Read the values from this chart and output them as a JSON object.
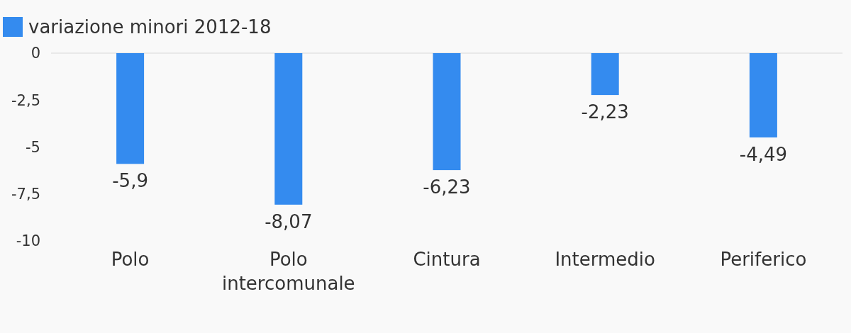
{
  "chart_data": {
    "type": "bar",
    "categories": [
      "Polo",
      "Polo intercomunale",
      "Cintura",
      "Intermedio",
      "Periferico"
    ],
    "series": [
      {
        "name": "variazione minori 2012-18",
        "color": "#348bef",
        "values": [
          -5.9,
          -8.07,
          -6.23,
          -2.23,
          -4.49
        ],
        "value_labels": [
          "-5,9",
          "-8,07",
          "-6,23",
          "-2,23",
          "-4,49"
        ]
      }
    ],
    "ylim": [
      -10,
      0
    ],
    "yticks": [
      0,
      {
        "value": -2.5,
        "label": "-2,5"
      },
      -5,
      {
        "value": -7.5,
        "label": "-7,5"
      },
      -10
    ],
    "legend": "top left",
    "grid": false
  }
}
